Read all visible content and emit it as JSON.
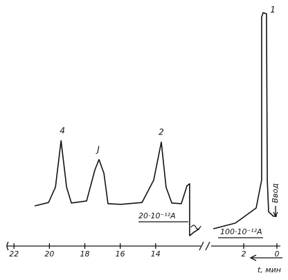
{
  "chart_data": {
    "type": "line",
    "ylim": [
      0,
      100
    ],
    "segments": [
      {
        "xlim": [
          22.4,
          11.45
        ],
        "xticks": [
          22,
          20,
          18,
          16,
          14
        ],
        "x": [
          20.83,
          20.05,
          19.66,
          19.34,
          19.03,
          18.76,
          17.9,
          17.43,
          17.2,
          16.92,
          16.69,
          15.95,
          14.77,
          14.11,
          13.68,
          13.41,
          13.09,
          12.55,
          12.23,
          12.08,
          12.08,
          11.84,
          11.53
        ],
        "values": [
          14.5,
          16,
          22.7,
          43,
          22.7,
          15.8,
          16.7,
          30.3,
          34.8,
          28.8,
          15.5,
          15.2,
          16,
          25.8,
          42.4,
          22.7,
          15.8,
          15.5,
          23.3,
          24.2,
          1.5,
          3,
          4.5
        ]
      },
      {
        "xlim": [
          3.96,
          -0.21
        ],
        "xticks": [
          2,
          0
        ],
        "x": [
          3.83,
          2.5,
          1.25,
          0.92,
          0.92,
          0.83,
          0.63,
          0.58,
          0.5,
          0.21,
          0
        ],
        "values": [
          4.5,
          7,
          13.6,
          25.8,
          97,
          99,
          98.5,
          25.8,
          12,
          10,
          10
        ]
      }
    ],
    "peak_labels": [
      "1",
      "2",
      "J",
      "4"
    ],
    "annotations": [
      "20·10⁻¹²A",
      "100·10⁻¹²A",
      "Ввод"
    ],
    "xlabel": "t, мин"
  }
}
